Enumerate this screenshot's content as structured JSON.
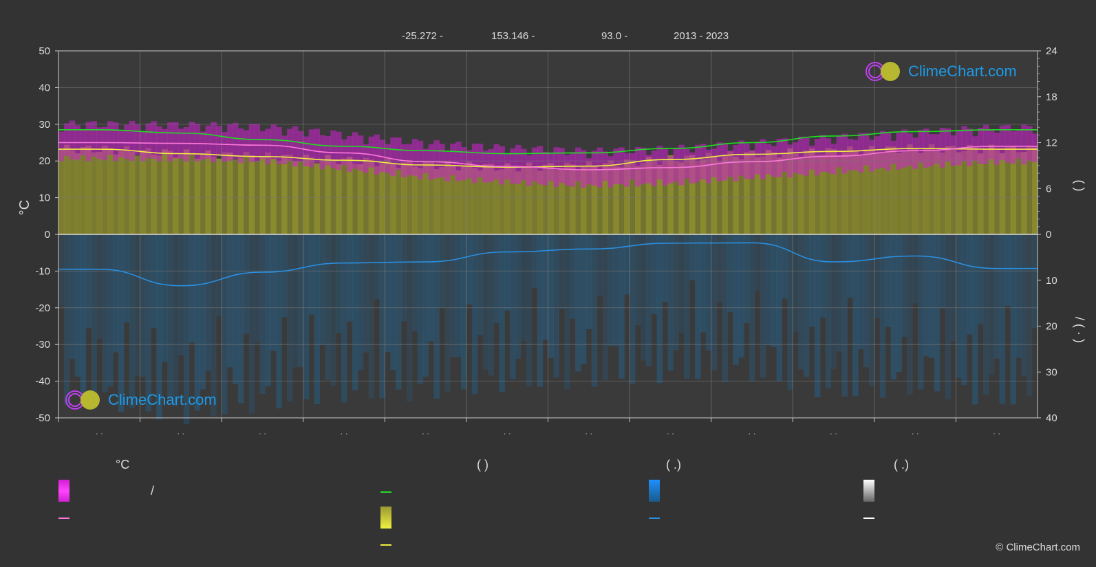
{
  "header": {
    "lat": "-25.272 -",
    "lon": "153.146 -",
    "elev": "93.0 -",
    "period": "2013 - 2023"
  },
  "copyright": "© ClimeChart.com",
  "logo_text": "ClimeChart.com",
  "colors": {
    "background": "#333333",
    "sunshine_fill": "#8a8a2e",
    "daylight": "#22dd22",
    "sunshine_line": "#f0f040",
    "temp_band": "#d020d0",
    "temp_mean": "#ff77dd",
    "precip_bar": "#1e6ea6",
    "precip_line": "#2a8fe0",
    "logo_blue": "#1e9be8"
  },
  "legend": {
    "col1_head": "°C",
    "col1_slash": "/",
    "col2_head": "(          )",
    "col3_head": "(   .)",
    "col4_head": "(   .)"
  },
  "chart_data": {
    "type": "line",
    "x": [
      1,
      2,
      3,
      4,
      5,
      6,
      7,
      8,
      9,
      10,
      11,
      12
    ],
    "month_ticks": [
      ". .",
      ". .",
      ". .",
      ". .",
      ". .",
      ". .",
      ". .",
      ". .",
      ". .",
      ". .",
      ". .",
      ". ."
    ],
    "left_axis": {
      "label": "°C",
      "ylim": [
        -50,
        50
      ],
      "ticks": [
        50,
        40,
        30,
        20,
        10,
        0,
        -10,
        -20,
        -30,
        -40,
        -50
      ]
    },
    "right_axis_top": {
      "label": "(   )",
      "ylim": [
        0,
        24
      ],
      "ticks": [
        24,
        18,
        12,
        6,
        0
      ]
    },
    "right_axis_bottom": {
      "label": "/   (  ·  )",
      "ylim": [
        0,
        40
      ],
      "ticks": [
        0,
        10,
        20,
        30,
        40
      ]
    },
    "grid": true,
    "series": [
      {
        "values": [
          28.5,
          27.6,
          25.8,
          24.0,
          22.8,
          22.0,
          22.2,
          23.4,
          25.0,
          26.8,
          28.0,
          28.5
        ]
      },
      {
        "values": [
          23.2,
          22.0,
          21.2,
          20.2,
          18.9,
          18.3,
          18.6,
          20.4,
          21.8,
          22.6,
          23.4,
          23.2
        ]
      },
      {
        "values": [
          25.0,
          24.8,
          24.3,
          22.2,
          19.8,
          18.5,
          17.6,
          18.2,
          19.8,
          21.3,
          22.8,
          24.0
        ]
      },
      {
        "values": [
          -9.5,
          -14.0,
          -10.3,
          -7.8,
          -7.5,
          -4.8,
          -4.0,
          -2.4,
          -2.3,
          -7.5,
          -5.9,
          -9.3
        ]
      }
    ]
  }
}
